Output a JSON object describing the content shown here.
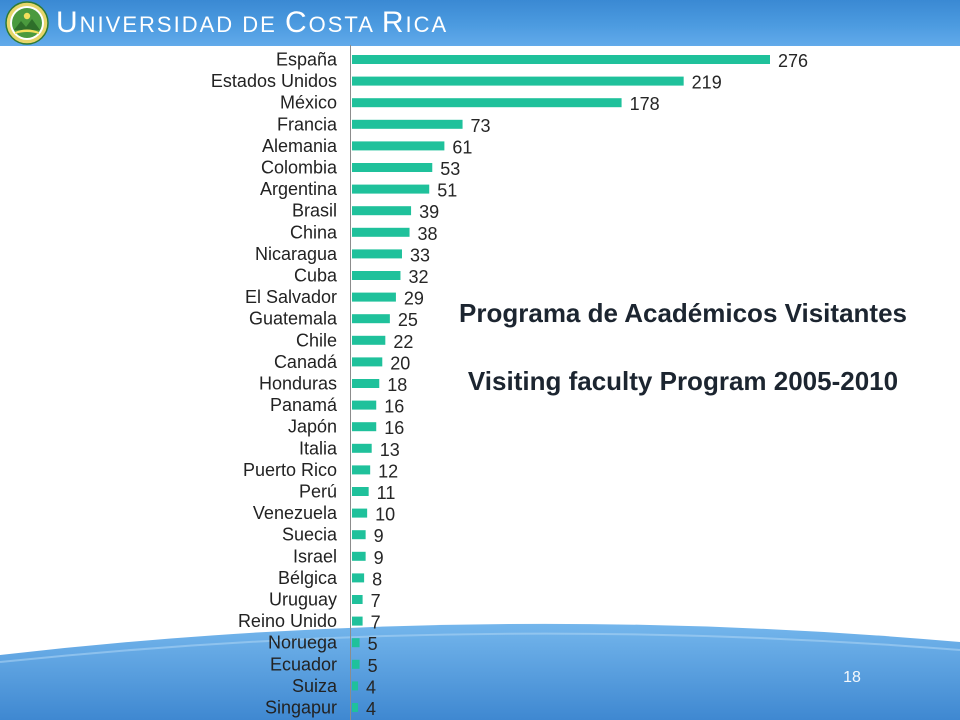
{
  "header": {
    "title": "UNIVERSIDAD DE COSTA RICA",
    "logo_icon": "university-seal-logo"
  },
  "slide": {
    "title": "Programa de Académicos Visitantes",
    "subtitle": "Visiting faculty Program 2005-2010",
    "page_number": "18"
  },
  "colors": {
    "header": "#4c9be0",
    "bar": "#1fc19b",
    "wave": "#4f98db",
    "axis": "#8c8c8c"
  },
  "chart_data": {
    "type": "bar",
    "orientation": "horizontal",
    "title": "",
    "xlabel": "",
    "ylabel": "",
    "grid": false,
    "data_labels": true,
    "categories": [
      "España",
      "Estados Unidos",
      "México",
      "Francia",
      "Alemania",
      "Colombia",
      "Argentina",
      "Brasil",
      "China",
      "Nicaragua",
      "Cuba",
      "El Salvador",
      "Guatemala",
      "Chile",
      "Canadá",
      "Honduras",
      "Panamá",
      "Japón",
      "Italia",
      "Puerto Rico",
      "Perú",
      "Venezuela",
      "Suecia",
      "Israel",
      "Bélgica",
      "Uruguay",
      "Reino Unido",
      "Noruega",
      "Ecuador",
      "Suiza",
      "Singapur"
    ],
    "values": [
      276,
      219,
      178,
      73,
      61,
      53,
      51,
      39,
      38,
      33,
      32,
      29,
      25,
      22,
      20,
      18,
      16,
      16,
      13,
      12,
      11,
      10,
      9,
      9,
      8,
      7,
      7,
      5,
      5,
      4,
      4
    ]
  }
}
